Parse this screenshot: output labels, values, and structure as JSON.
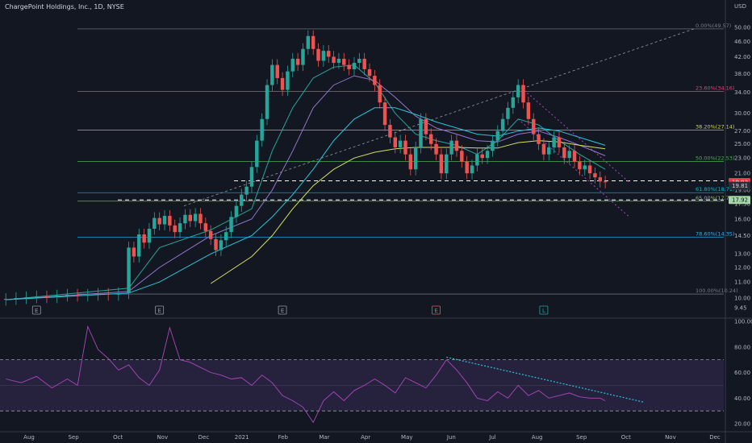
{
  "header": {
    "title": "ChargePoint Holdings, Inc., 1D, NYSE"
  },
  "chart_data": [
    {
      "type": "candlestick",
      "currency": "USD",
      "price_axis": {
        "scale": "log",
        "ylim": [
          9.0,
          54.0
        ],
        "ticks": [
          "50.00",
          "46.00",
          "42.00",
          "38.00",
          "34.00",
          "30.00",
          "27.00",
          "25.00",
          "23.00",
          "21.00",
          "19.00",
          "17.50",
          "16.00",
          "14.50",
          "13.00",
          "12.00",
          "11.00",
          "10.00",
          "9.45"
        ]
      },
      "time_axis": {
        "ticks": [
          "Aug",
          "Sep",
          "Oct",
          "Nov",
          "Dec",
          "2021",
          "Feb",
          "Mar",
          "Apr",
          "May",
          "Jun",
          "Jul",
          "Aug",
          "Sep",
          "Oct",
          "Nov",
          "Dec"
        ]
      },
      "candles": [
        [
          0,
          9.9,
          9.95
        ],
        [
          2,
          9.95,
          10.0
        ],
        [
          4,
          10.0,
          10.05
        ],
        [
          6,
          10.05,
          10.1
        ],
        [
          8,
          10.1,
          10.05
        ],
        [
          10,
          10.05,
          10.15
        ],
        [
          12,
          10.15,
          10.2
        ],
        [
          14,
          10.2,
          10.15
        ],
        [
          16,
          10.15,
          10.2
        ],
        [
          18,
          10.2,
          10.25
        ],
        [
          20,
          10.25,
          10.2
        ],
        [
          22,
          10.2,
          10.3
        ],
        [
          24,
          10.3,
          13.5
        ],
        [
          25,
          13.5,
          12.8
        ],
        [
          26,
          12.8,
          14.6
        ],
        [
          27,
          14.6,
          13.9
        ],
        [
          28,
          13.9,
          15.1
        ],
        [
          29,
          15.1,
          16.1
        ],
        [
          30,
          16.1,
          15.5
        ],
        [
          31,
          15.5,
          16.3
        ],
        [
          32,
          16.3,
          15.4
        ],
        [
          33,
          15.4,
          14.8
        ],
        [
          34,
          14.8,
          15.6
        ],
        [
          35,
          15.6,
          16.4
        ],
        [
          36,
          16.4,
          15.8
        ],
        [
          37,
          15.8,
          16.5
        ],
        [
          38,
          16.5,
          15.6
        ],
        [
          39,
          15.6,
          14.9
        ],
        [
          40,
          14.9,
          14.2
        ],
        [
          41,
          14.2,
          13.3
        ],
        [
          42,
          13.3,
          14.1
        ],
        [
          43,
          14.1,
          14.8
        ],
        [
          44,
          14.8,
          16.2
        ],
        [
          45,
          16.2,
          17.3
        ],
        [
          46,
          17.3,
          18.5
        ],
        [
          47,
          18.5,
          19.4
        ],
        [
          48,
          19.4,
          21.8
        ],
        [
          49,
          21.8,
          25.5
        ],
        [
          50,
          25.5,
          29.0
        ],
        [
          51,
          29.0,
          35.5
        ],
        [
          52,
          35.5,
          40.0
        ],
        [
          53,
          40.0,
          37.0
        ],
        [
          54,
          37.0,
          34.5
        ],
        [
          55,
          34.5,
          38.5
        ],
        [
          56,
          38.5,
          41.5
        ],
        [
          57,
          41.5,
          40.0
        ],
        [
          58,
          40.0,
          44.0
        ],
        [
          59,
          44.0,
          47.5
        ],
        [
          60,
          47.5,
          44.0
        ],
        [
          61,
          44.0,
          41.0
        ],
        [
          62,
          41.0,
          43.5
        ],
        [
          63,
          43.5,
          42.0
        ],
        [
          64,
          42.0,
          40.5
        ],
        [
          65,
          40.5,
          41.5
        ],
        [
          66,
          41.5,
          40.0
        ],
        [
          67,
          40.0,
          39.0
        ],
        [
          68,
          39.0,
          40.5
        ],
        [
          69,
          40.5,
          41.5
        ],
        [
          70,
          41.5,
          39.0
        ],
        [
          71,
          39.0,
          37.5
        ],
        [
          72,
          37.5,
          35.5
        ],
        [
          73,
          35.5,
          32.0
        ],
        [
          74,
          32.0,
          28.0
        ],
        [
          75,
          28.0,
          26.0
        ],
        [
          76,
          26.0,
          24.5
        ],
        [
          77,
          24.5,
          25.5
        ],
        [
          78,
          25.5,
          23.5
        ],
        [
          79,
          23.5,
          21.5
        ],
        [
          80,
          21.5,
          24.5
        ],
        [
          81,
          24.5,
          29.0
        ],
        [
          82,
          29.0,
          26.5
        ],
        [
          83,
          26.5,
          25.0
        ],
        [
          84,
          25.0,
          23.5
        ],
        [
          85,
          23.5,
          21.0
        ],
        [
          86,
          21.0,
          23.5
        ],
        [
          87,
          23.5,
          25.5
        ],
        [
          88,
          25.5,
          24.0
        ],
        [
          89,
          24.0,
          22.5
        ],
        [
          90,
          22.5,
          21.0
        ],
        [
          91,
          21.0,
          22.0
        ],
        [
          92,
          22.0,
          23.5
        ],
        [
          93,
          23.5,
          23.0
        ],
        [
          94,
          23.0,
          24.0
        ],
        [
          95,
          24.0,
          25.5
        ],
        [
          96,
          25.5,
          27.0
        ],
        [
          97,
          27.0,
          29.0
        ],
        [
          98,
          29.0,
          31.0
        ],
        [
          99,
          31.0,
          33.0
        ],
        [
          100,
          33.0,
          35.5
        ],
        [
          101,
          35.5,
          32.0
        ],
        [
          102,
          32.0,
          29.0
        ],
        [
          103,
          29.0,
          26.5
        ],
        [
          104,
          26.5,
          25.0
        ],
        [
          105,
          25.0,
          23.5
        ],
        [
          106,
          23.5,
          24.5
        ],
        [
          107,
          24.5,
          26.0
        ],
        [
          108,
          26.0,
          24.5
        ],
        [
          109,
          24.5,
          23.0
        ],
        [
          110,
          23.0,
          24.0
        ],
        [
          111,
          24.0,
          22.5
        ],
        [
          112,
          22.5,
          21.5
        ],
        [
          113,
          21.5,
          22.0
        ],
        [
          114,
          22.0,
          21.0
        ],
        [
          115,
          21.0,
          20.5
        ],
        [
          116,
          20.5,
          20.0
        ],
        [
          117,
          20.0,
          19.9
        ]
      ],
      "moving_averages": [
        {
          "color": "#26a69a",
          "values": [
            [
              0,
              9.9
            ],
            [
              24,
              10.6
            ],
            [
              30,
              13.5
            ],
            [
              40,
              15.0
            ],
            [
              48,
              17.0
            ],
            [
              52,
              24.0
            ],
            [
              56,
              31.0
            ],
            [
              60,
              37.0
            ],
            [
              64,
              39.5
            ],
            [
              68,
              40.0
            ],
            [
              72,
              36.0
            ],
            [
              76,
              30.0
            ],
            [
              80,
              26.5
            ],
            [
              84,
              25.5
            ],
            [
              88,
              24.8
            ],
            [
              92,
              23.5
            ],
            [
              96,
              25.5
            ],
            [
              100,
              29.0
            ],
            [
              104,
              28.0
            ],
            [
              108,
              25.5
            ],
            [
              112,
              23.5
            ],
            [
              117,
              21.5
            ]
          ]
        },
        {
          "color": "#9575cd",
          "values": [
            [
              0,
              9.9
            ],
            [
              24,
              10.4
            ],
            [
              30,
              12.0
            ],
            [
              40,
              14.5
            ],
            [
              48,
              16.0
            ],
            [
              52,
              19.0
            ],
            [
              56,
              24.0
            ],
            [
              60,
              31.0
            ],
            [
              64,
              35.5
            ],
            [
              68,
              37.5
            ],
            [
              72,
              36.5
            ],
            [
              76,
              33.0
            ],
            [
              80,
              29.5
            ],
            [
              84,
              27.5
            ],
            [
              88,
              26.5
            ],
            [
              92,
              25.5
            ],
            [
              96,
              25.3
            ],
            [
              100,
              26.5
            ],
            [
              104,
              27.0
            ],
            [
              108,
              26.0
            ],
            [
              112,
              24.8
            ],
            [
              117,
              23.3
            ]
          ]
        },
        {
          "color": "#26c6da",
          "values": [
            [
              0,
              9.9
            ],
            [
              24,
              10.3
            ],
            [
              30,
              11.0
            ],
            [
              40,
              13.0
            ],
            [
              48,
              14.5
            ],
            [
              52,
              16.2
            ],
            [
              56,
              18.5
            ],
            [
              60,
              21.5
            ],
            [
              64,
              25.5
            ],
            [
              68,
              29.0
            ],
            [
              72,
              31.0
            ],
            [
              76,
              31.0
            ],
            [
              80,
              29.8
            ],
            [
              84,
              28.5
            ],
            [
              88,
              27.5
            ],
            [
              92,
              26.5
            ],
            [
              96,
              26.2
            ],
            [
              100,
              27.0
            ],
            [
              104,
              27.5
            ],
            [
              108,
              27.0
            ],
            [
              112,
              26.0
            ],
            [
              117,
              24.8
            ]
          ]
        },
        {
          "color": "#d4e157",
          "values": [
            [
              40,
              10.9
            ],
            [
              48,
              12.8
            ],
            [
              52,
              14.5
            ],
            [
              56,
              17.0
            ],
            [
              60,
              19.5
            ],
            [
              64,
              21.5
            ],
            [
              68,
              23.0
            ],
            [
              72,
              23.8
            ],
            [
              76,
              24.3
            ],
            [
              80,
              24.5
            ],
            [
              84,
              24.5
            ],
            [
              88,
              24.5
            ],
            [
              92,
              24.4
            ],
            [
              96,
              24.4
            ],
            [
              100,
              25.2
            ],
            [
              104,
              25.5
            ],
            [
              108,
              25.3
            ],
            [
              112,
              24.8
            ],
            [
              117,
              24.3
            ]
          ]
        }
      ],
      "fibonacci": [
        {
          "label": "0.00%(49.57)",
          "price": 49.57,
          "color": "#787b86"
        },
        {
          "label": "23.60%(34.16)",
          "price": 34.16,
          "color": "#ec407a"
        },
        {
          "label": "38.20%(27.14)",
          "price": 27.14,
          "color": "#cddc39"
        },
        {
          "label": "50.00%(22.53)",
          "price": 22.53,
          "color": "#4caf50"
        },
        {
          "label": "61.80%(18.71)",
          "price": 18.71,
          "color": "#00bcd4"
        },
        {
          "label": "65.00%(17.79)",
          "price": 17.79,
          "color": "#8bc34a"
        },
        {
          "label": "78.60%(14.35)",
          "price": 14.35,
          "color": "#29b6f6"
        },
        {
          "label": "100.00%(10.24)",
          "price": 10.24,
          "color": "#787b86"
        }
      ],
      "dashed_levels": [
        {
          "price": 20.08,
          "color": "#ffffff"
        },
        {
          "price": 17.92,
          "color": "#ffffff"
        }
      ],
      "price_tags": [
        {
          "text": "19.93",
          "price": 19.93,
          "bg": "#f23645",
          "fg": "#ffffff"
        },
        {
          "text": "19.81",
          "price": 19.5,
          "bg": "#2a2e39",
          "fg": "#d1d4dc"
        },
        {
          "text": "17.92",
          "price": 17.92,
          "bg": "#a5d6a7",
          "fg": "#131722"
        }
      ],
      "event_markers": [
        {
          "bar": 6,
          "text": "E",
          "color": "#9598a1"
        },
        {
          "bar": 30,
          "text": "E",
          "color": "#9598a1"
        },
        {
          "bar": 54,
          "text": "E",
          "color": "#9598a1"
        },
        {
          "bar": 84,
          "text": "E",
          "color": "#ef5350"
        },
        {
          "bar": 105,
          "text": "L",
          "color": "#26a69a"
        }
      ]
    },
    {
      "type": "line",
      "name": "RSI",
      "ylim": [
        15,
        100
      ],
      "ticks": [
        "100.00",
        "80.00",
        "60.00",
        "40.00",
        "20.00"
      ],
      "band": [
        30,
        70
      ],
      "values": [
        [
          0,
          55
        ],
        [
          3,
          52
        ],
        [
          6,
          57
        ],
        [
          9,
          48
        ],
        [
          12,
          55
        ],
        [
          14,
          50
        ],
        [
          16,
          96
        ],
        [
          18,
          78
        ],
        [
          20,
          71
        ],
        [
          22,
          62
        ],
        [
          24,
          66
        ],
        [
          26,
          56
        ],
        [
          28,
          50
        ],
        [
          30,
          62
        ],
        [
          32,
          95
        ],
        [
          34,
          70
        ],
        [
          36,
          68
        ],
        [
          38,
          64
        ],
        [
          40,
          60
        ],
        [
          42,
          58
        ],
        [
          44,
          55
        ],
        [
          46,
          56
        ],
        [
          48,
          50
        ],
        [
          50,
          58
        ],
        [
          52,
          52
        ],
        [
          54,
          42
        ],
        [
          56,
          38
        ],
        [
          58,
          33
        ],
        [
          60,
          21
        ],
        [
          62,
          38
        ],
        [
          64,
          45
        ],
        [
          66,
          38
        ],
        [
          68,
          46
        ],
        [
          70,
          50
        ],
        [
          72,
          55
        ],
        [
          74,
          50
        ],
        [
          76,
          44
        ],
        [
          78,
          56
        ],
        [
          80,
          52
        ],
        [
          82,
          48
        ],
        [
          84,
          58
        ],
        [
          86,
          70
        ],
        [
          88,
          62
        ],
        [
          90,
          52
        ],
        [
          92,
          40
        ],
        [
          94,
          38
        ],
        [
          96,
          45
        ],
        [
          98,
          40
        ],
        [
          100,
          50
        ],
        [
          102,
          42
        ],
        [
          104,
          46
        ],
        [
          106,
          40
        ],
        [
          108,
          42
        ],
        [
          110,
          44
        ],
        [
          112,
          41
        ],
        [
          114,
          40
        ],
        [
          116,
          40
        ],
        [
          117,
          38
        ]
      ]
    }
  ]
}
